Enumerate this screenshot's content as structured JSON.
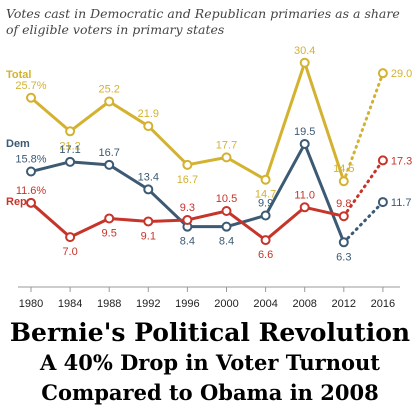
{
  "subtitle_lines": [
    "Votes cast in Democratic and Republican primaries as a share",
    "of eligible voters in primary states"
  ],
  "headlines": [
    "Bernie's Political Revolution",
    "A 40% Drop in Voter Turnout",
    "Compared to Obama in 2008"
  ],
  "chart_data": {
    "type": "line",
    "x": [
      "1980",
      "1984",
      "1988",
      "1992",
      "1996",
      "2000",
      "2004",
      "2008",
      "2012",
      "2016"
    ],
    "series": [
      {
        "name": "Total",
        "color": "#d4b230",
        "values": [
          25.7,
          21.2,
          25.2,
          21.9,
          16.7,
          17.7,
          14.7,
          30.4,
          14.5,
          29.0
        ],
        "labels": [
          "25.7%",
          "21.2",
          "25.2",
          "21.9",
          "16.7",
          "17.7",
          "14.7",
          "30.4",
          "14.5",
          "29.0"
        ],
        "dotted_last_segment": true
      },
      {
        "name": "Dem",
        "color": "#3c5a73",
        "values": [
          15.8,
          17.1,
          16.7,
          13.4,
          8.4,
          8.4,
          9.9,
          19.5,
          6.3,
          11.7
        ],
        "labels": [
          "15.8%",
          "17.1",
          "16.7",
          "13.4",
          "8.4",
          "8.4",
          "9.9",
          "19.5",
          "6.3",
          "11.7"
        ],
        "dotted_last_segment": true
      },
      {
        "name": "Rep",
        "color": "#c7342a",
        "values": [
          11.6,
          7.0,
          9.5,
          9.1,
          9.3,
          10.5,
          6.6,
          11.0,
          9.8,
          17.3
        ],
        "labels": [
          "11.6%",
          "7.0",
          "9.5",
          "9.1",
          "9.3",
          "10.5",
          "6.6",
          "11.0",
          "9.8",
          "17.3"
        ],
        "dotted_last_segment": true
      }
    ],
    "grid": false,
    "legend": "inline labels on the left"
  }
}
